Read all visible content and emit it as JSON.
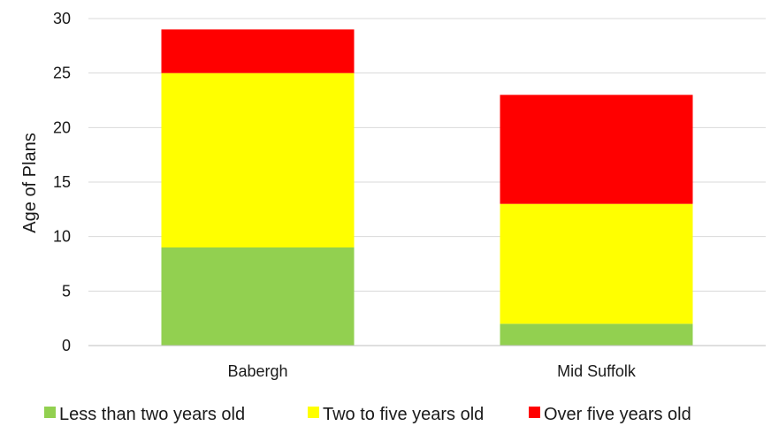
{
  "chart_data": {
    "type": "bar",
    "stacked": true,
    "title": "",
    "xlabel": "",
    "ylabel": "Age of Plans",
    "ylim": [
      0,
      30
    ],
    "yticks": [
      0,
      5,
      10,
      15,
      20,
      25,
      30
    ],
    "grid": true,
    "legend_position": "bottom",
    "categories": [
      "Babergh",
      "Mid Suffolk"
    ],
    "series": [
      {
        "name": "Less than two years old",
        "color": "#92d050",
        "values": [
          9,
          2
        ]
      },
      {
        "name": "Two to five years old",
        "color": "#ffff00",
        "values": [
          16,
          11
        ]
      },
      {
        "name": "Over five years old",
        "color": "#ff0000",
        "values": [
          4,
          10
        ]
      }
    ]
  }
}
